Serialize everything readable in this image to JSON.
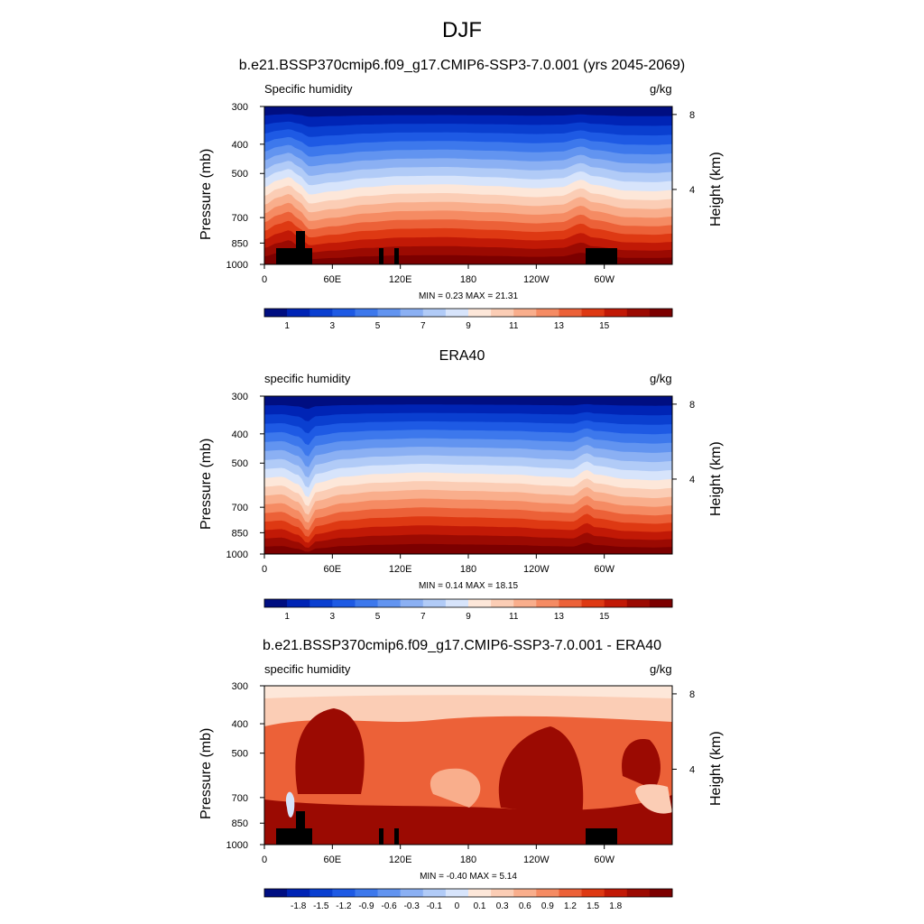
{
  "title": "DJF",
  "colors": {
    "sequential": [
      "#000e81",
      "#0024b5",
      "#0a3fd0",
      "#1e5ae4",
      "#3d78ec",
      "#6294f0",
      "#8bb0f3",
      "#b1cbf7",
      "#d7e4fb",
      "#fde7d9",
      "#fbcdb5",
      "#f9ae8c",
      "#f58b63",
      "#ec6138",
      "#de3913",
      "#c11906",
      "#9b0a02",
      "#7c0000"
    ],
    "difference": [
      "#000e81",
      "#0024b5",
      "#0a3fd0",
      "#1e5ae4",
      "#3d78ec",
      "#6294f0",
      "#8bb0f3",
      "#b1cbf7",
      "#d7e4fb",
      "#fde7d9",
      "#fbcdb5",
      "#f9ae8c",
      "#f58b63",
      "#ec6138",
      "#de3913",
      "#c11906",
      "#9b0a02",
      "#7c0000"
    ],
    "topography": "#000000"
  },
  "chart_data": [
    {
      "type": "heatmap",
      "title": "b.e21.BSSP370cmip6.f09_g17.CMIP6-SSP3-7.0.001 (yrs 2045-2069)",
      "left_label": "Specific humidity",
      "right_label": "g/kg",
      "ylabel": "Pressure (mb)",
      "y2label": "Height (km)",
      "x_ticks": [
        "0",
        "60E",
        "120E",
        "180",
        "120W",
        "60W"
      ],
      "y_ticks": [
        "300",
        "400",
        "500",
        "700",
        "850",
        "1000"
      ],
      "y2_ticks": [
        "8",
        "4"
      ],
      "stats": "MIN =   0.23  MAX =  21.31",
      "colorbar_ticks": [
        "1",
        "3",
        "5",
        "7",
        "9",
        "11",
        "13",
        "15"
      ],
      "xlim": [
        0,
        360
      ],
      "ylim": [
        1000,
        300
      ],
      "y_scale": "log-pressure",
      "value_range": [
        0.23,
        21.31
      ]
    },
    {
      "type": "heatmap",
      "title": "ERA40",
      "left_label": "specific humidity",
      "right_label": "g/kg",
      "ylabel": "Pressure (mb)",
      "y2label": "Height (km)",
      "x_ticks": [
        "0",
        "60E",
        "120E",
        "180",
        "120W",
        "60W"
      ],
      "y_ticks": [
        "300",
        "400",
        "500",
        "700",
        "850",
        "1000"
      ],
      "y2_ticks": [
        "8",
        "4"
      ],
      "stats": "MIN =   0.14  MAX =  18.15",
      "colorbar_ticks": [
        "1",
        "3",
        "5",
        "7",
        "9",
        "11",
        "13",
        "15"
      ],
      "xlim": [
        0,
        360
      ],
      "ylim": [
        1000,
        300
      ],
      "y_scale": "log-pressure",
      "value_range": [
        0.14,
        18.15
      ]
    },
    {
      "type": "heatmap",
      "title": "b.e21.BSSP370cmip6.f09_g17.CMIP6-SSP3-7.0.001 - ERA40",
      "left_label": "specific humidity",
      "right_label": "g/kg",
      "ylabel": "Pressure (mb)",
      "y2label": "Height (km)",
      "x_ticks": [
        "0",
        "60E",
        "120E",
        "180",
        "120W",
        "60W"
      ],
      "y_ticks": [
        "300",
        "400",
        "500",
        "700",
        "850",
        "1000"
      ],
      "y2_ticks": [
        "8",
        "4"
      ],
      "stats": "MIN =  -0.40  MAX =   5.14",
      "colorbar_ticks": [
        "-1.8",
        "-1.5",
        "-1.2",
        "-0.9",
        "-0.6",
        "-0.3",
        "-0.1",
        "0",
        "0.1",
        "0.3",
        "0.6",
        "0.9",
        "1.2",
        "1.5",
        "1.8"
      ],
      "xlim": [
        0,
        360
      ],
      "ylim": [
        1000,
        300
      ],
      "y_scale": "log-pressure",
      "value_range": [
        -0.4,
        5.14
      ]
    }
  ]
}
